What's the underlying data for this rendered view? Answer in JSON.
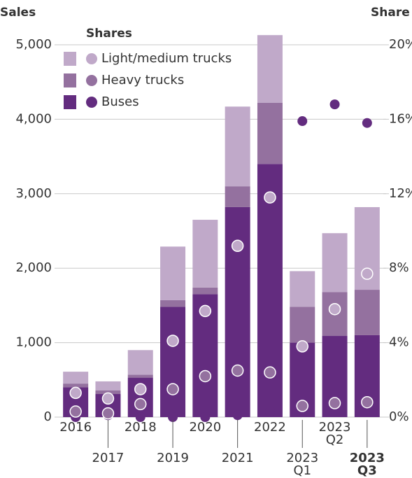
{
  "chart_data": {
    "type": "stacked-bar",
    "y_label": "Sales",
    "y2_label": "Share",
    "legend_title": "Shares",
    "categories": [
      "2016",
      "2017",
      "2018",
      "2019",
      "2020",
      "2021",
      "2022",
      "2023 Q1",
      "2023 Q2",
      "2023 Q3"
    ],
    "series": [
      {
        "name": "Buses",
        "color": "#632c7f",
        "values": [
          400,
          310,
          530,
          1480,
          1650,
          2820,
          3400,
          1000,
          1090,
          1100
        ],
        "shares": [
          0.0,
          0.1,
          0.0,
          0.0,
          0.0,
          0.1,
          0.3,
          15.9,
          16.8,
          15.8
        ]
      },
      {
        "name": "Heavy trucks",
        "color": "#94719f",
        "values": [
          50,
          50,
          40,
          90,
          90,
          280,
          820,
          480,
          590,
          610
        ],
        "shares": [
          0.3,
          0.2,
          0.7,
          1.5,
          2.2,
          2.5,
          2.4,
          0.6,
          0.75,
          0.8
        ]
      },
      {
        "name": "Light/medium trucks",
        "color": "#c0a9c9",
        "values": [
          160,
          120,
          330,
          720,
          910,
          1070,
          910,
          480,
          790,
          1110
        ],
        "shares": [
          1.3,
          1.0,
          1.5,
          4.1,
          5.7,
          9.2,
          11.8,
          3.8,
          5.8,
          7.7
        ]
      }
    ],
    "ylim": [
      0,
      5000
    ],
    "yticks": [
      0,
      {
        "value": 1000,
        "label": "1,000"
      },
      {
        "value": 2000,
        "label": "2,000"
      },
      {
        "value": 3000,
        "label": "3,000"
      },
      {
        "value": 4000,
        "label": "4,000"
      },
      {
        "value": 5000,
        "label": "5,000"
      }
    ],
    "y2lim": [
      0,
      20
    ],
    "y2ticks": [
      {
        "value": 0,
        "label": "0%"
      },
      {
        "value": 4,
        "label": "4%"
      },
      {
        "value": 8,
        "label": "8%"
      },
      {
        "value": 12,
        "label": "12%"
      },
      {
        "value": 16,
        "label": "16%"
      },
      {
        "value": 20,
        "label": "20%"
      }
    ],
    "grid": true
  }
}
